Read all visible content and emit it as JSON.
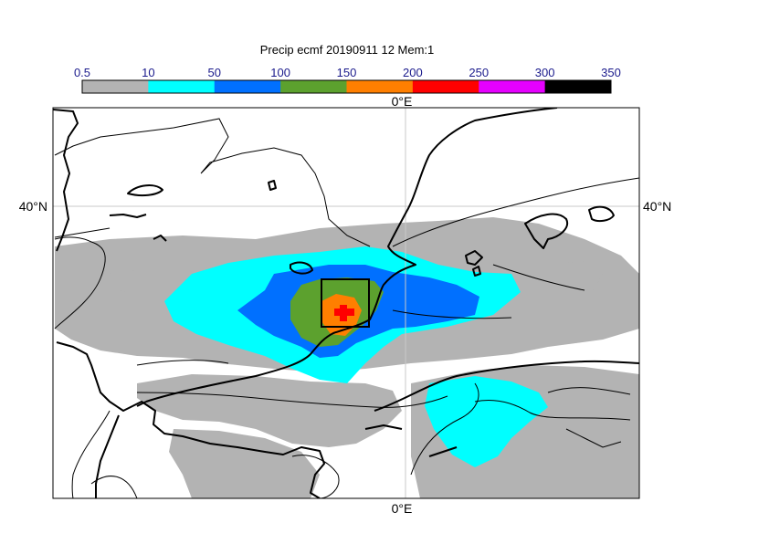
{
  "title": "Precip ecmf 20190911 12 Mem:1",
  "colorbar": {
    "ticks": [
      "0.5",
      "10",
      "50",
      "100",
      "150",
      "200",
      "250",
      "300",
      "350"
    ],
    "colors": [
      "#b3b3b3",
      "#00ffff",
      "#0070ff",
      "#5ca12e",
      "#ff7f00",
      "#ff0000",
      "#e600ff",
      "#000000"
    ]
  },
  "axes": {
    "lon_top": "0°E",
    "lon_bottom": "0°E",
    "lat_left": "40°N",
    "lat_right": "40°N"
  }
}
